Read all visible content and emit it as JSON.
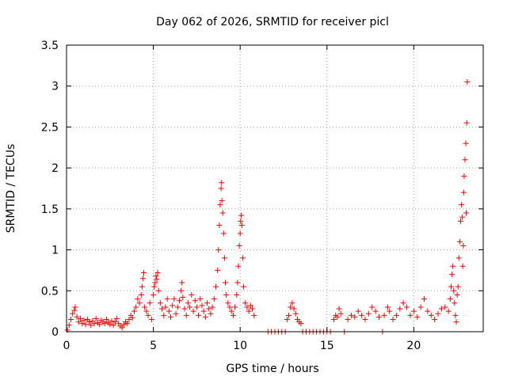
{
  "chart_data": {
    "type": "scatter",
    "title": "Day 062 of 2026, SRMTID for receiver picl",
    "xlabel": "GPS time / hours",
    "ylabel": "SRMTID / TECUs",
    "xlim": [
      0,
      24
    ],
    "ylim": [
      0,
      3.5
    ],
    "xticks": [
      0,
      5,
      10,
      15,
      20
    ],
    "xtick_labels": [
      "0",
      "5",
      "10",
      "15",
      "20"
    ],
    "yticks": [
      0,
      0.5,
      1,
      1.5,
      2,
      2.5,
      3,
      3.5
    ],
    "ytick_labels": [
      "0",
      "0.5",
      "1",
      "1.5",
      "2",
      "2.5",
      "3",
      "3.5"
    ],
    "grid": true,
    "marker": "+",
    "color": "#ff0000",
    "series": [
      {
        "name": "SRMTID",
        "points": [
          [
            0.05,
            0.02
          ],
          [
            0.15,
            0.08
          ],
          [
            0.25,
            0.15
          ],
          [
            0.35,
            0.22
          ],
          [
            0.45,
            0.26
          ],
          [
            0.5,
            0.3
          ],
          [
            0.6,
            0.18
          ],
          [
            0.7,
            0.12
          ],
          [
            0.8,
            0.16
          ],
          [
            0.9,
            0.1
          ],
          [
            1.0,
            0.14
          ],
          [
            1.1,
            0.09
          ],
          [
            1.2,
            0.15
          ],
          [
            1.3,
            0.12
          ],
          [
            1.4,
            0.08
          ],
          [
            1.5,
            0.13
          ],
          [
            1.6,
            0.1
          ],
          [
            1.7,
            0.16
          ],
          [
            1.8,
            0.11
          ],
          [
            1.9,
            0.09
          ],
          [
            2.0,
            0.14
          ],
          [
            2.1,
            0.12
          ],
          [
            2.2,
            0.1
          ],
          [
            2.3,
            0.15
          ],
          [
            2.4,
            0.11
          ],
          [
            2.5,
            0.09
          ],
          [
            2.6,
            0.13
          ],
          [
            2.7,
            0.08
          ],
          [
            2.8,
            0.12
          ],
          [
            2.9,
            0.16
          ],
          [
            3.0,
            0.1
          ],
          [
            3.1,
            0.07
          ],
          [
            3.2,
            0.05
          ],
          [
            3.3,
            0.09
          ],
          [
            3.4,
            0.12
          ],
          [
            3.5,
            0.1
          ],
          [
            3.6,
            0.15
          ],
          [
            3.7,
            0.2
          ],
          [
            3.8,
            0.17
          ],
          [
            3.9,
            0.25
          ],
          [
            4.0,
            0.3
          ],
          [
            4.1,
            0.4
          ],
          [
            4.2,
            0.35
          ],
          [
            4.3,
            0.45
          ],
          [
            4.35,
            0.55
          ],
          [
            4.4,
            0.65
          ],
          [
            4.45,
            0.72
          ],
          [
            4.5,
            0.3
          ],
          [
            4.6,
            0.25
          ],
          [
            4.7,
            0.2
          ],
          [
            4.8,
            0.35
          ],
          [
            4.9,
            0.15
          ],
          [
            5.0,
            0.45
          ],
          [
            5.05,
            0.55
          ],
          [
            5.1,
            0.6
          ],
          [
            5.15,
            0.68
          ],
          [
            5.2,
            0.64
          ],
          [
            5.25,
            0.72
          ],
          [
            5.3,
            0.5
          ],
          [
            5.4,
            0.35
          ],
          [
            5.5,
            0.28
          ],
          [
            5.6,
            0.2
          ],
          [
            5.7,
            0.3
          ],
          [
            5.8,
            0.4
          ],
          [
            5.9,
            0.25
          ],
          [
            6.0,
            0.18
          ],
          [
            6.1,
            0.32
          ],
          [
            6.2,
            0.4
          ],
          [
            6.3,
            0.22
          ],
          [
            6.4,
            0.3
          ],
          [
            6.5,
            0.38
          ],
          [
            6.6,
            0.5
          ],
          [
            6.65,
            0.6
          ],
          [
            6.7,
            0.42
          ],
          [
            6.8,
            0.28
          ],
          [
            6.9,
            0.2
          ],
          [
            7.0,
            0.35
          ],
          [
            7.1,
            0.3
          ],
          [
            7.2,
            0.45
          ],
          [
            7.3,
            0.25
          ],
          [
            7.4,
            0.38
          ],
          [
            7.5,
            0.3
          ],
          [
            7.6,
            0.2
          ],
          [
            7.7,
            0.4
          ],
          [
            7.8,
            0.32
          ],
          [
            7.9,
            0.25
          ],
          [
            8.0,
            0.18
          ],
          [
            8.1,
            0.35
          ],
          [
            8.2,
            0.28
          ],
          [
            8.3,
            0.22
          ],
          [
            8.4,
            0.3
          ],
          [
            8.5,
            0.4
          ],
          [
            8.6,
            0.55
          ],
          [
            8.7,
            0.75
          ],
          [
            8.75,
            1.0
          ],
          [
            8.8,
            1.3
          ],
          [
            8.85,
            1.55
          ],
          [
            8.9,
            1.75
          ],
          [
            8.93,
            1.82
          ],
          [
            8.95,
            1.6
          ],
          [
            9.0,
            1.45
          ],
          [
            9.05,
            1.2
          ],
          [
            9.1,
            0.9
          ],
          [
            9.15,
            0.6
          ],
          [
            9.2,
            0.45
          ],
          [
            9.3,
            0.35
          ],
          [
            9.4,
            0.3
          ],
          [
            9.5,
            0.25
          ],
          [
            9.6,
            0.2
          ],
          [
            9.7,
            0.3
          ],
          [
            9.8,
            0.45
          ],
          [
            9.85,
            0.6
          ],
          [
            9.9,
            0.8
          ],
          [
            9.95,
            1.05
          ],
          [
            10.0,
            1.2
          ],
          [
            10.03,
            1.35
          ],
          [
            10.06,
            1.42
          ],
          [
            10.1,
            1.3
          ],
          [
            10.15,
            0.9
          ],
          [
            10.2,
            0.55
          ],
          [
            10.3,
            0.35
          ],
          [
            10.4,
            0.3
          ],
          [
            10.5,
            0.25
          ],
          [
            10.6,
            0.32
          ],
          [
            10.7,
            0.28
          ],
          [
            10.8,
            0.2
          ],
          [
            11.6,
            0.0
          ],
          [
            11.8,
            0.0
          ],
          [
            12.0,
            0.0
          ],
          [
            12.2,
            0.0
          ],
          [
            12.4,
            0.0
          ],
          [
            12.6,
            0.0
          ],
          [
            12.7,
            0.15
          ],
          [
            12.8,
            0.2
          ],
          [
            12.9,
            0.3
          ],
          [
            13.0,
            0.35
          ],
          [
            13.1,
            0.28
          ],
          [
            13.2,
            0.22
          ],
          [
            13.3,
            0.15
          ],
          [
            13.4,
            0.12
          ],
          [
            13.5,
            0.1
          ],
          [
            13.6,
            0.0
          ],
          [
            13.8,
            0.0
          ],
          [
            14.0,
            0.0
          ],
          [
            14.2,
            0.0
          ],
          [
            14.4,
            0.0
          ],
          [
            14.6,
            0.0
          ],
          [
            14.8,
            0.0
          ],
          [
            15.0,
            0.0
          ],
          [
            15.2,
            0.0
          ],
          [
            15.4,
            0.15
          ],
          [
            15.5,
            0.2
          ],
          [
            15.6,
            0.18
          ],
          [
            15.7,
            0.28
          ],
          [
            15.8,
            0.22
          ],
          [
            16.0,
            0.0
          ],
          [
            16.2,
            0.15
          ],
          [
            16.4,
            0.2
          ],
          [
            16.6,
            0.18
          ],
          [
            16.8,
            0.25
          ],
          [
            17.0,
            0.2
          ],
          [
            17.2,
            0.15
          ],
          [
            17.4,
            0.22
          ],
          [
            17.6,
            0.3
          ],
          [
            17.8,
            0.25
          ],
          [
            18.0,
            0.18
          ],
          [
            18.2,
            0.0
          ],
          [
            18.3,
            0.2
          ],
          [
            18.5,
            0.3
          ],
          [
            18.6,
            0.25
          ],
          [
            18.8,
            0.15
          ],
          [
            19.0,
            0.2
          ],
          [
            19.2,
            0.28
          ],
          [
            19.4,
            0.35
          ],
          [
            19.6,
            0.3
          ],
          [
            19.8,
            0.2
          ],
          [
            20.0,
            0.25
          ],
          [
            20.2,
            0.18
          ],
          [
            20.4,
            0.3
          ],
          [
            20.6,
            0.4
          ],
          [
            20.8,
            0.25
          ],
          [
            21.0,
            0.2
          ],
          [
            21.2,
            0.15
          ],
          [
            21.4,
            0.22
          ],
          [
            21.6,
            0.28
          ],
          [
            21.8,
            0.3
          ],
          [
            22.0,
            0.25
          ],
          [
            22.1,
            0.4
          ],
          [
            22.15,
            0.55
          ],
          [
            22.2,
            0.7
          ],
          [
            22.25,
            0.8
          ],
          [
            22.3,
            0.5
          ],
          [
            22.35,
            0.35
          ],
          [
            22.4,
            0.2
          ],
          [
            22.45,
            0.12
          ],
          [
            22.5,
            0.45
          ],
          [
            22.55,
            0.55
          ],
          [
            22.6,
            0.9
          ],
          [
            22.65,
            1.1
          ],
          [
            22.7,
            1.35
          ],
          [
            22.75,
            1.55
          ],
          [
            22.8,
            1.4
          ],
          [
            22.82,
            0.8
          ],
          [
            22.85,
            1.05
          ],
          [
            22.88,
            1.7
          ],
          [
            22.9,
            1.9
          ],
          [
            22.95,
            2.1
          ],
          [
            23.0,
            2.3
          ],
          [
            23.02,
            1.45
          ],
          [
            23.05,
            2.55
          ],
          [
            23.08,
            3.05
          ]
        ]
      }
    ]
  }
}
